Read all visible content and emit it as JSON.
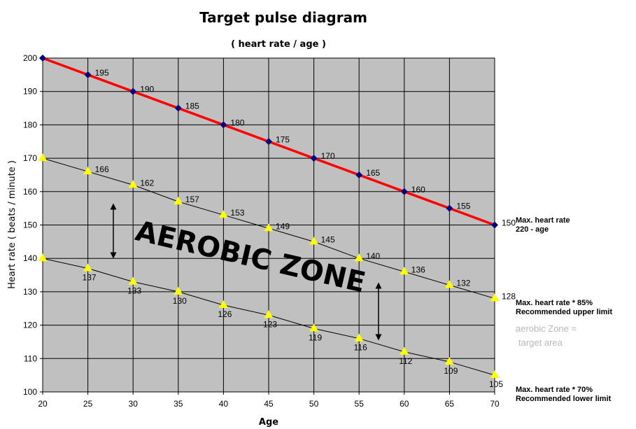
{
  "chart_data": {
    "type": "line",
    "title": "Target pulse diagram",
    "subtitle": "( heart rate / age )",
    "xlabel": "Age",
    "ylabel": "Heart rate  ( beats / minute )",
    "x": [
      20,
      25,
      30,
      35,
      40,
      45,
      50,
      55,
      60,
      65,
      70
    ],
    "xlim": [
      20,
      70
    ],
    "ylim": [
      100,
      200
    ],
    "xticks": [
      "20",
      "25",
      "30",
      "35",
      "40",
      "45",
      "50",
      "55",
      "60",
      "65",
      "70"
    ],
    "yticks": [
      "100",
      "110",
      "120",
      "130",
      "140",
      "150",
      "160",
      "170",
      "180",
      "190",
      "200"
    ],
    "grid": true,
    "plot_background": "#c0c0c0",
    "series": [
      {
        "values": [
          200,
          195,
          190,
          185,
          180,
          175,
          170,
          165,
          160,
          155,
          150
        ],
        "labels": [
          "",
          "195",
          "190",
          "185",
          "180",
          "175",
          "170",
          "165",
          "160",
          "155",
          "150"
        ],
        "line_color": "#ff0000",
        "marker": "diamond",
        "marker_color": "#000080"
      },
      {
        "values": [
          170,
          166,
          162,
          157,
          153,
          149,
          145,
          140,
          136,
          132,
          128
        ],
        "labels": [
          "",
          "166",
          "162",
          "157",
          "153",
          "149",
          "145",
          "140",
          "136",
          "132",
          "128"
        ],
        "line_color": "#000000",
        "marker": "triangle",
        "marker_color": "#ffff00"
      },
      {
        "values": [
          140,
          137,
          133,
          130,
          126,
          123,
          119,
          116,
          112,
          109,
          105
        ],
        "labels": [
          "",
          "137",
          "133",
          "130",
          "126",
          "123",
          "119",
          "116",
          "112",
          "109",
          "105"
        ],
        "line_color": "#000000",
        "marker": "triangle",
        "marker_color": "#ffff00"
      }
    ],
    "annotations": {
      "zone": "AEROBIC ZONE",
      "max_line1": "Max. heart rate",
      "max_line2": "220 - age",
      "upper_line1": "Max. heart rate * 85%",
      "upper_line2": "Recommended upper limit",
      "target_line1": "aerobic Zone =",
      "target_line2": "target area",
      "lower_line1": "Max. heart rate * 70%",
      "lower_line2": "Recommended lower limit"
    }
  }
}
